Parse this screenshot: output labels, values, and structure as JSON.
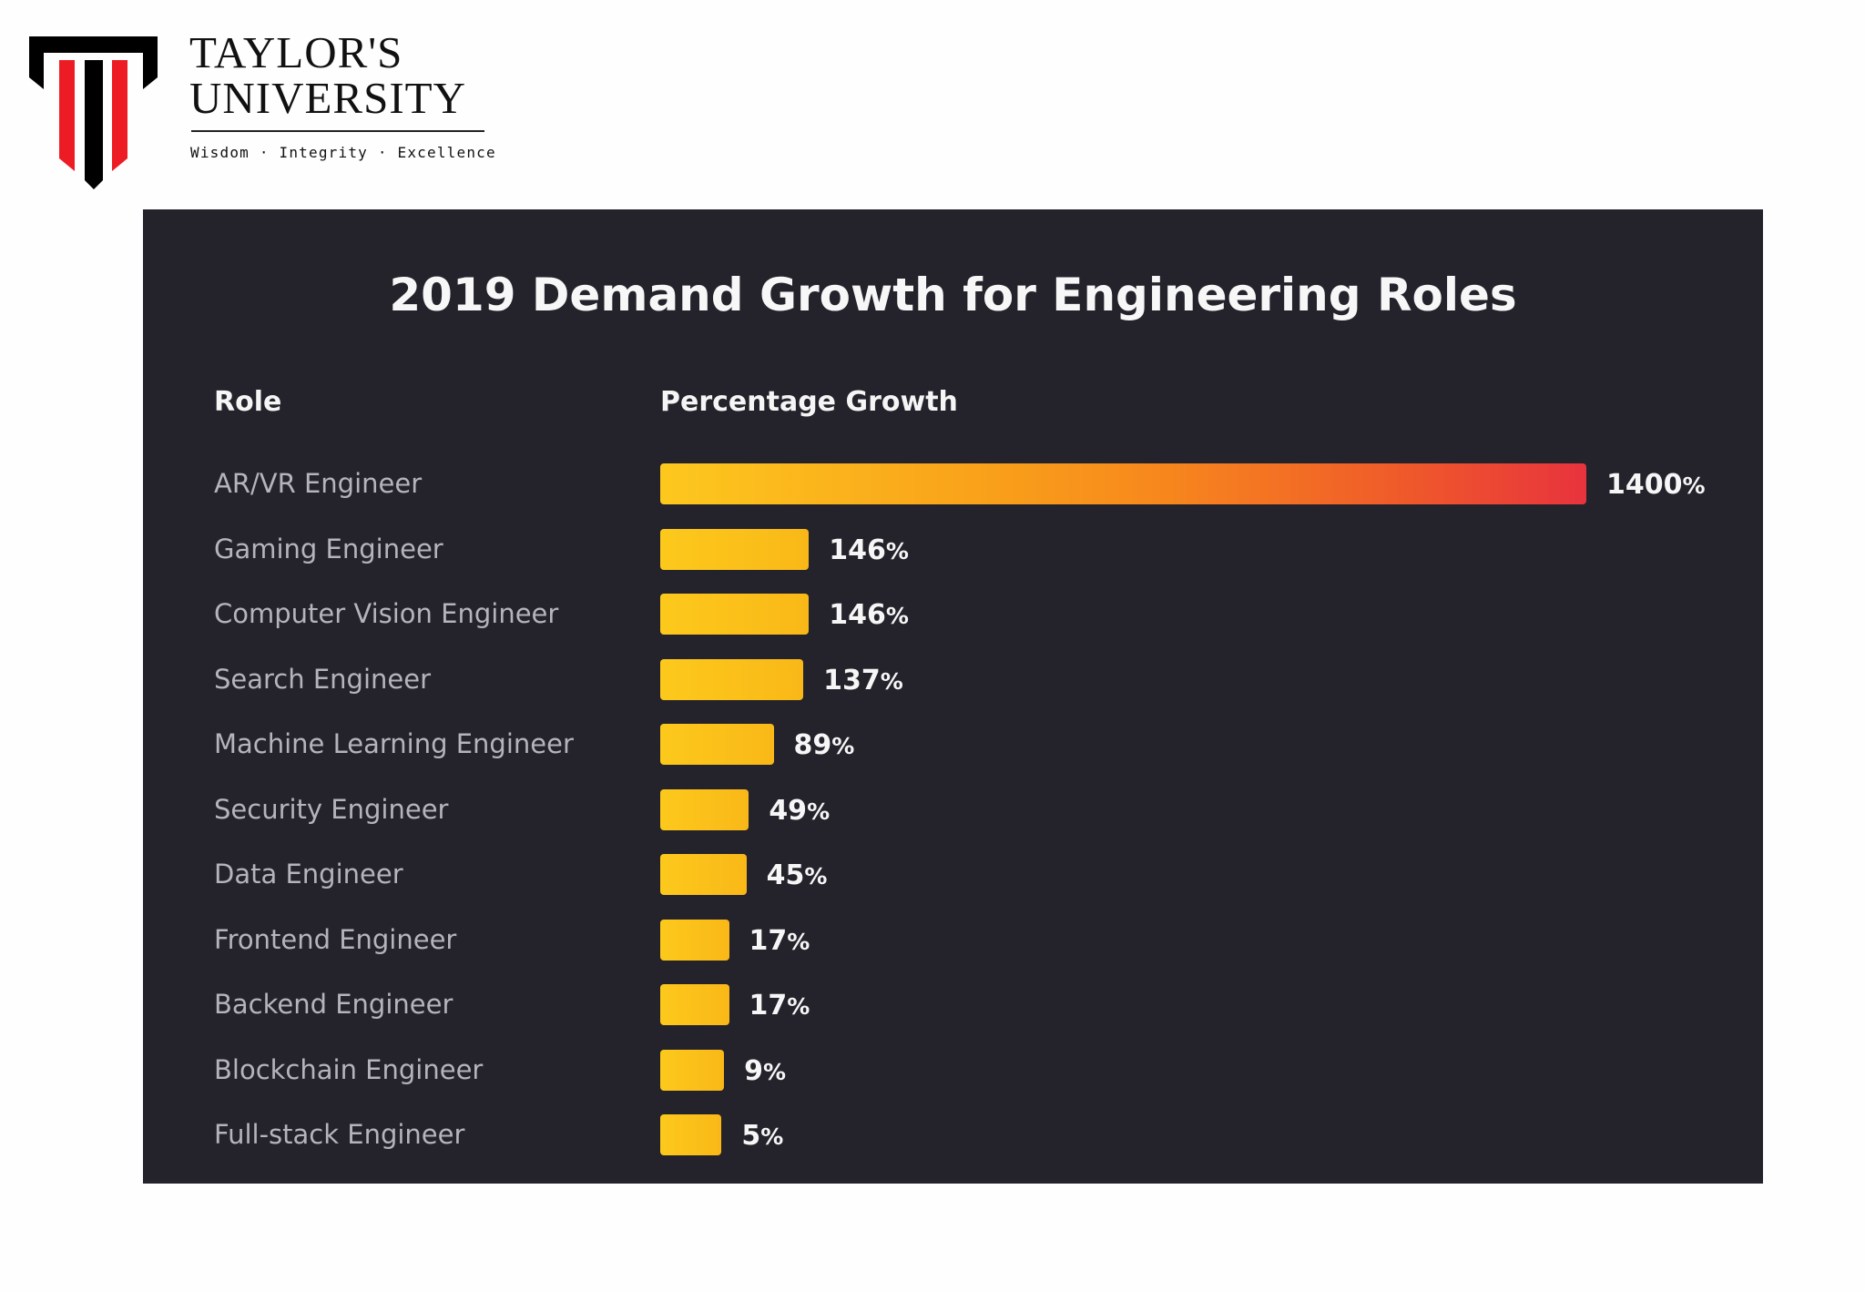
{
  "logo": {
    "line1": "TAYLOR'S",
    "line2": "UNIVERSITY",
    "tagline": "Wisdom · Integrity · Excellence",
    "colors": {
      "black": "#000000",
      "red": "#ed1c24"
    }
  },
  "panel": {
    "background": "#24222b"
  },
  "chart_data": {
    "type": "bar",
    "orientation": "horizontal",
    "title": "2019 Demand Growth for Engineering Roles",
    "category_header": "Role",
    "value_header": "Percentage Growth",
    "unit": "%",
    "categories": [
      "AR/VR Engineer",
      "Gaming Engineer",
      "Computer Vision Engineer",
      "Search Engineer",
      "Machine Learning Engineer",
      "Security Engineer",
      "Data Engineer",
      "Frontend Engineer",
      "Backend Engineer",
      "Blockchain Engineer",
      "Full-stack Engineer"
    ],
    "values": [
      1400,
      146,
      146,
      137,
      89,
      49,
      45,
      17,
      17,
      9,
      5
    ],
    "value_labels": [
      "1400",
      "146",
      "146",
      "137",
      "89",
      "49",
      "45",
      "17",
      "17",
      "9",
      "5"
    ],
    "bar_colors": {
      "default": "#fcc21b",
      "highlight_gradient": [
        "#fdc81e",
        "#f7861d",
        "#e8333d"
      ]
    },
    "grid": false,
    "legend": "none",
    "xlabel": "",
    "ylabel": ""
  }
}
